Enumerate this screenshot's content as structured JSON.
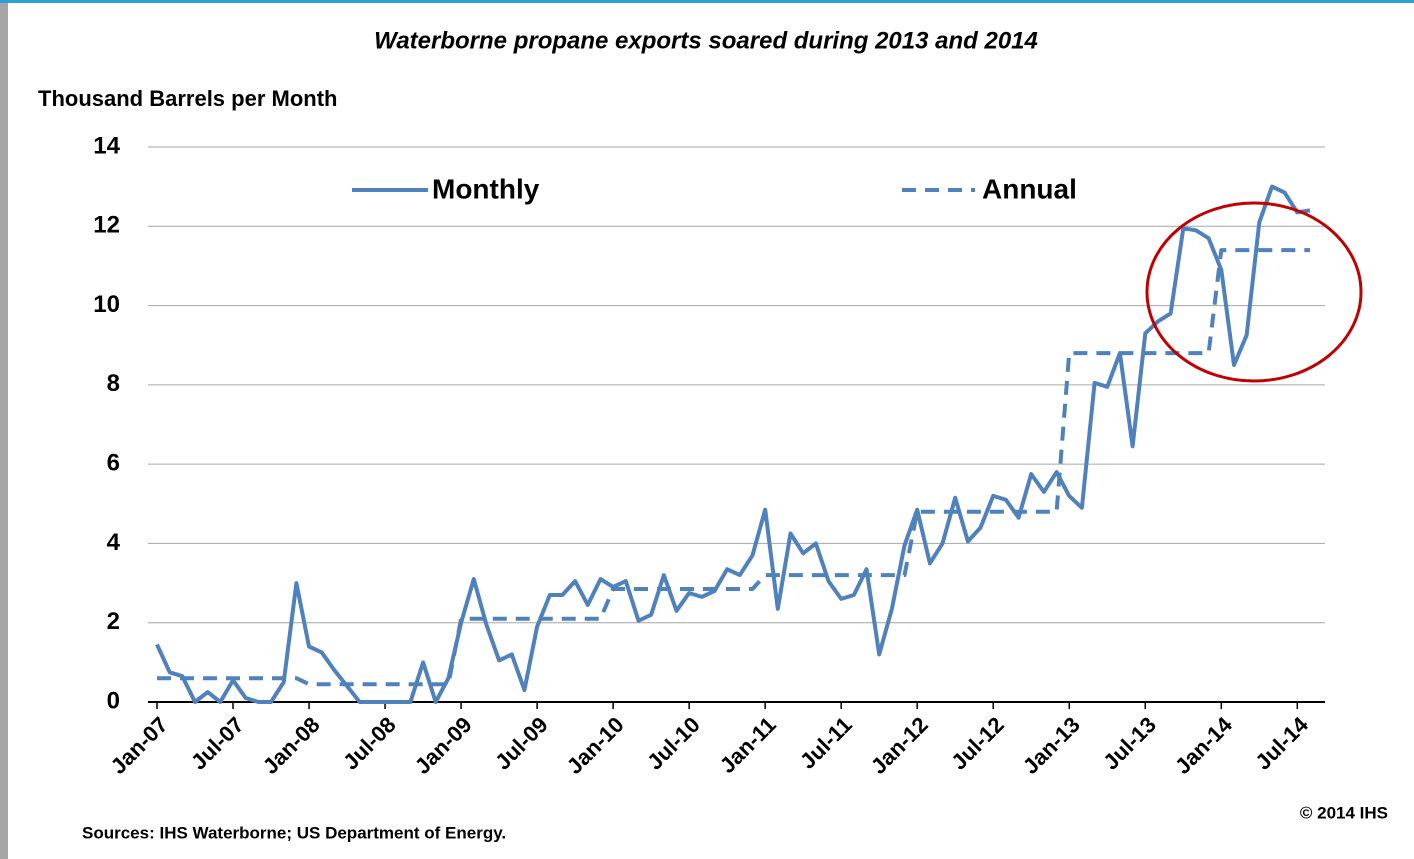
{
  "chart_data": {
    "type": "line",
    "title": "Waterborne propane exports soared during 2013 and 2014",
    "y_label": "Thousand Barrels per Month",
    "source": "Sources: IHS Waterborne; US Department of Energy.",
    "copyright": "© 2014 IHS",
    "categories": [
      "Jan-07",
      null,
      null,
      null,
      null,
      null,
      "Jul-07",
      null,
      null,
      null,
      null,
      null,
      "Jan-08",
      null,
      null,
      null,
      null,
      null,
      "Jul-08",
      null,
      null,
      null,
      null,
      null,
      "Jan-09",
      null,
      null,
      null,
      null,
      null,
      "Jul-09",
      null,
      null,
      null,
      null,
      null,
      "Jan-10",
      null,
      null,
      null,
      null,
      null,
      "Jul-10",
      null,
      null,
      null,
      null,
      null,
      "Jan-11",
      null,
      null,
      null,
      null,
      null,
      "Jul-11",
      null,
      null,
      null,
      null,
      null,
      "Jan-12",
      null,
      null,
      null,
      null,
      null,
      "Jul-12",
      null,
      null,
      null,
      null,
      null,
      "Jan-13",
      null,
      null,
      null,
      null,
      null,
      "Jul-13",
      null,
      null,
      null,
      null,
      null,
      "Jan-14",
      null,
      null,
      null,
      null,
      null,
      "Jul-14",
      null
    ],
    "series": [
      {
        "name": "Monthly",
        "color": "#4f81bd",
        "dashed": false,
        "values": [
          1.45,
          0.75,
          0.65,
          0.0,
          0.25,
          0.0,
          0.55,
          0.1,
          0.0,
          0.0,
          0.5,
          3.0,
          1.4,
          1.25,
          0.8,
          0.4,
          0.0,
          0.0,
          0.0,
          0.0,
          0.0,
          1.0,
          0.0,
          0.6,
          2.0,
          3.1,
          1.95,
          1.05,
          1.2,
          0.3,
          1.9,
          2.7,
          2.7,
          3.05,
          2.45,
          3.1,
          2.9,
          3.05,
          2.05,
          2.2,
          3.2,
          2.3,
          2.75,
          2.65,
          2.8,
          3.35,
          3.2,
          3.7,
          4.85,
          2.35,
          4.25,
          3.75,
          4.0,
          3.05,
          2.6,
          2.7,
          3.35,
          1.2,
          2.35,
          3.95,
          4.85,
          3.5,
          4.0,
          5.15,
          4.05,
          4.4,
          5.2,
          5.1,
          4.65,
          5.75,
          5.3,
          5.8,
          5.2,
          4.9,
          8.05,
          7.95,
          8.8,
          6.45,
          9.3,
          9.6,
          9.8,
          11.95,
          11.9,
          11.7,
          10.9,
          8.5,
          9.25,
          12.1,
          13.0,
          12.85,
          12.35,
          12.4
        ]
      },
      {
        "name": "Annual",
        "color": "#4f81bd",
        "dashed": true,
        "values": [
          0.6,
          0.6,
          0.6,
          0.6,
          0.6,
          0.6,
          0.6,
          0.6,
          0.6,
          0.6,
          0.6,
          0.6,
          0.45,
          0.45,
          0.45,
          0.45,
          0.45,
          0.45,
          0.45,
          0.45,
          0.45,
          0.45,
          0.45,
          0.45,
          2.1,
          2.1,
          2.1,
          2.1,
          2.1,
          2.1,
          2.1,
          2.1,
          2.1,
          2.1,
          2.1,
          2.1,
          2.85,
          2.85,
          2.85,
          2.85,
          2.85,
          2.85,
          2.85,
          2.85,
          2.85,
          2.85,
          2.85,
          2.85,
          3.2,
          3.2,
          3.2,
          3.2,
          3.2,
          3.2,
          3.2,
          3.2,
          3.2,
          3.2,
          3.2,
          3.2,
          4.8,
          4.8,
          4.8,
          4.8,
          4.8,
          4.8,
          4.8,
          4.8,
          4.8,
          4.8,
          4.8,
          4.8,
          8.8,
          8.8,
          8.8,
          8.8,
          8.8,
          8.8,
          8.8,
          8.8,
          8.8,
          8.8,
          8.8,
          8.8,
          11.4,
          11.4,
          11.4,
          11.4,
          11.4,
          11.4,
          11.4,
          11.4
        ]
      }
    ],
    "ylim": [
      0,
      14
    ],
    "yticks": [
      0,
      2,
      4,
      6,
      8,
      10,
      12,
      14
    ],
    "grid": true
  }
}
